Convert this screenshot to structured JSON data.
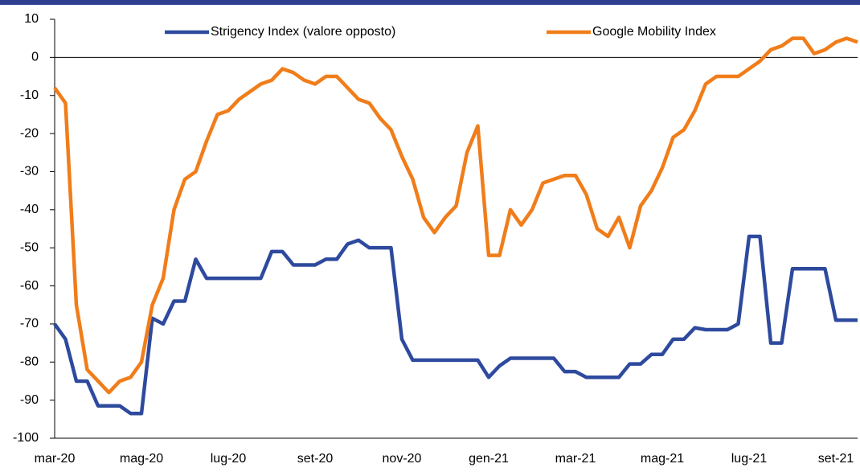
{
  "chart_data": {
    "type": "line",
    "categories": [
      "mar-20",
      null,
      null,
      null,
      null,
      null,
      null,
      null,
      "mag-20",
      null,
      null,
      null,
      null,
      null,
      null,
      null,
      "lug-20",
      null,
      null,
      null,
      null,
      null,
      null,
      null,
      "set-20",
      null,
      null,
      null,
      null,
      null,
      null,
      null,
      "nov-20",
      null,
      null,
      null,
      null,
      null,
      null,
      null,
      "gen-21",
      null,
      null,
      null,
      null,
      null,
      null,
      null,
      "mar-21",
      null,
      null,
      null,
      null,
      null,
      null,
      null,
      "mag-21",
      null,
      null,
      null,
      null,
      null,
      null,
      null,
      "lug-21",
      null,
      null,
      null,
      null,
      null,
      null,
      null,
      "set-21",
      null,
      null
    ],
    "series": [
      {
        "name": "Strigency Index (valore opposto)",
        "color": "#2e4a9e",
        "values": [
          -70,
          -74,
          -85,
          -85,
          -91.5,
          -91.5,
          -91.5,
          -93.5,
          -93.5,
          -68.5,
          -70,
          -64,
          -64,
          -53,
          -58,
          -58,
          -58,
          -58,
          -58,
          -58,
          -51,
          -51,
          -54.5,
          -54.5,
          -54.5,
          -53,
          -53,
          -49,
          -48,
          -50,
          -50,
          -50,
          -74,
          -79.5,
          -79.5,
          -79.5,
          -79.5,
          -79.5,
          -79.5,
          -79.5,
          -84,
          -81,
          -79,
          -79,
          -79,
          -79,
          -79,
          -82.5,
          -82.5,
          -84,
          -84,
          -84,
          -84,
          -80.5,
          -80.5,
          -78,
          -78,
          -74,
          -74,
          -71,
          -71.5,
          -71.5,
          -71.5,
          -70,
          -47,
          -47,
          -75,
          -75,
          -55.5,
          -55.5,
          -55.5,
          -55.5,
          -69,
          -69,
          -69
        ]
      },
      {
        "name": "Google Mobility Index",
        "color": "#f07d1a",
        "values": [
          -8,
          -12,
          -65,
          -82,
          -85,
          -88,
          -85,
          -84,
          -80,
          -65,
          -58,
          -40,
          -32,
          -30,
          -22,
          -15,
          -14,
          -11,
          -9,
          -7,
          -6,
          -3,
          -4,
          -6,
          -7,
          -5,
          -5,
          -8,
          -11,
          -12,
          -16,
          -19,
          -26,
          -32,
          -42,
          -46,
          -42,
          -39,
          -25,
          -18,
          -52,
          -52,
          -40,
          -44,
          -40,
          -33,
          -32,
          -31,
          -31,
          -36,
          -45,
          -47,
          -42,
          -50,
          -39,
          -35,
          -29,
          -21,
          -19,
          -14,
          -7,
          -5,
          -5,
          -5,
          -3,
          -1,
          2,
          3,
          5,
          5,
          1,
          2,
          4,
          5,
          4
        ]
      }
    ],
    "ylim": [
      -100,
      10
    ],
    "yticks": [
      -100,
      -90,
      -80,
      -70,
      -60,
      -50,
      -40,
      -30,
      -20,
      -10,
      0,
      10
    ],
    "legend": "top"
  }
}
